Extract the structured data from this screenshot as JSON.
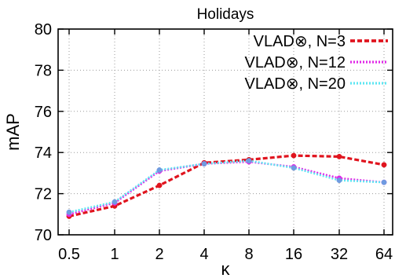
{
  "chart_data": {
    "type": "line",
    "title": "Holidays",
    "xlabel": "κ",
    "ylabel": "mAP",
    "categories": [
      "0.5",
      "1",
      "2",
      "4",
      "8",
      "16",
      "32",
      "64"
    ],
    "ylim": [
      70,
      80
    ],
    "yticks": [
      "70",
      "72",
      "74",
      "76",
      "78",
      "80"
    ],
    "grid": true,
    "legend_position": "top-right",
    "series": [
      {
        "name": "VLAD⊗, N=3",
        "color": "#e0141e",
        "marker_color": "#e0141e",
        "style": "dashed-thick",
        "values": [
          70.9,
          71.4,
          72.4,
          73.5,
          73.65,
          73.85,
          73.8,
          73.4
        ]
      },
      {
        "name": "VLAD⊗, N=12",
        "color": "#e02ae8",
        "marker_color": "#e02ae8",
        "style": "dotted",
        "values": [
          71.0,
          71.55,
          73.1,
          73.45,
          73.55,
          73.3,
          72.75,
          72.55
        ]
      },
      {
        "name": "VLAD⊗, N=20",
        "color": "#5ee6f2",
        "marker_color": "#6f9be0",
        "style": "dotted",
        "values": [
          71.1,
          71.6,
          73.15,
          73.45,
          73.6,
          73.25,
          72.65,
          72.55
        ]
      }
    ]
  }
}
